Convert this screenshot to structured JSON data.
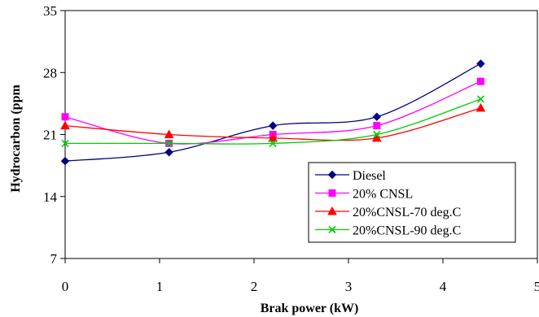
{
  "chart_data": {
    "type": "line",
    "title": "",
    "xlabel": "Brak power (kW)",
    "ylabel": "Hydrocarbon (ppm",
    "xlim": [
      0,
      5
    ],
    "ylim": [
      7,
      35
    ],
    "xticks": [
      0,
      1,
      2,
      3,
      4,
      5
    ],
    "yticks": [
      7,
      14,
      21,
      28,
      35
    ],
    "grid": false,
    "legend_position": "bottom-right",
    "series": [
      {
        "name": "Diesel",
        "color": "#000080",
        "marker": "diamond",
        "x": [
          0,
          1.1,
          2.2,
          3.3,
          4.4
        ],
        "y": [
          18,
          19,
          22,
          23,
          29
        ]
      },
      {
        "name": "20% CNSL",
        "color": "#FF00FF",
        "marker": "square",
        "x": [
          0,
          1.1,
          2.2,
          3.3,
          4.4
        ],
        "y": [
          23,
          20,
          21,
          22,
          27
        ]
      },
      {
        "name": "20%CNSL-70 deg.C",
        "color": "#FF0000",
        "marker": "triangle",
        "x": [
          0,
          1.1,
          2.2,
          3.3,
          4.4
        ],
        "y": [
          22,
          21,
          20.6,
          20.6,
          24
        ]
      },
      {
        "name": "20%CNSL-90 deg.C",
        "color": "#00CC00",
        "marker": "x",
        "x": [
          0,
          1.1,
          2.2,
          3.3,
          4.4
        ],
        "y": [
          20,
          20,
          20,
          21,
          25
        ]
      }
    ]
  }
}
